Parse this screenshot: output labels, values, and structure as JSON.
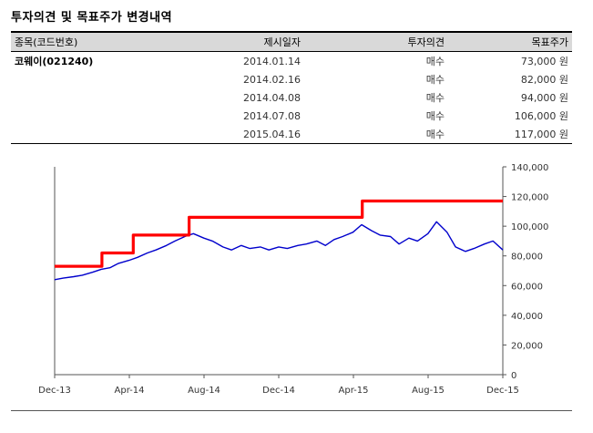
{
  "page": {
    "title": "투자의견 및 목표주가 변경내역"
  },
  "table": {
    "headers": [
      "종목(코드번호)",
      "제시일자",
      "투자의견",
      "목표주가"
    ],
    "stock": "코웨이(021240)",
    "rows": [
      {
        "date": "2014.01.14",
        "opinion": "매수",
        "target": "73,000 원"
      },
      {
        "date": "2014.02.16",
        "opinion": "매수",
        "target": "82,000 원"
      },
      {
        "date": "2014.04.08",
        "opinion": "매수",
        "target": "94,000 원"
      },
      {
        "date": "2014.07.08",
        "opinion": "매수",
        "target": "106,000 원"
      },
      {
        "date": "2015.04.16",
        "opinion": "매수",
        "target": "117,000 원"
      }
    ]
  },
  "chart_data": {
    "type": "line",
    "x_ticks": [
      "Dec-13",
      "Apr-14",
      "Aug-14",
      "Dec-14",
      "Apr-15",
      "Aug-15",
      "Dec-15"
    ],
    "y_ticks": [
      "0",
      "20,000",
      "40,000",
      "60,000",
      "80,000",
      "100,000",
      "120,000",
      "140,000"
    ],
    "ylim": [
      0,
      140000
    ],
    "xlim": [
      "2013-12-01",
      "2015-12-01"
    ],
    "colors": {
      "price": "#0000cc",
      "target": "#ff0000"
    },
    "series": [
      {
        "x": [
          "2013-12-01",
          "2013-12-15",
          "2014-01-01",
          "2014-01-15",
          "2014-02-01",
          "2014-02-15",
          "2014-03-01",
          "2014-03-15",
          "2014-04-01",
          "2014-04-15",
          "2014-05-01",
          "2014-05-15",
          "2014-06-01",
          "2014-06-15",
          "2014-07-01",
          "2014-07-15",
          "2014-08-01",
          "2014-08-15",
          "2014-09-01",
          "2014-09-15",
          "2014-10-01",
          "2014-10-15",
          "2014-11-01",
          "2014-11-15",
          "2014-12-01",
          "2014-12-15",
          "2015-01-01",
          "2015-01-15",
          "2015-02-01",
          "2015-02-15",
          "2015-03-01",
          "2015-03-15",
          "2015-04-01",
          "2015-04-15",
          "2015-05-01",
          "2015-05-15",
          "2015-06-01",
          "2015-06-15",
          "2015-07-01",
          "2015-07-15",
          "2015-08-01",
          "2015-08-15",
          "2015-09-01",
          "2015-09-15",
          "2015-10-01",
          "2015-10-15",
          "2015-11-01",
          "2015-11-15",
          "2015-12-01"
        ],
        "values": [
          64000,
          65000,
          66000,
          67000,
          69000,
          71000,
          72000,
          75000,
          77000,
          79000,
          82000,
          84000,
          87000,
          90000,
          93000,
          95000,
          92000,
          90000,
          86000,
          84000,
          87000,
          85000,
          86000,
          84000,
          86000,
          85000,
          87000,
          88000,
          90000,
          87000,
          91000,
          93000,
          96000,
          101000,
          97000,
          94000,
          93000,
          88000,
          92000,
          90000,
          95000,
          103000,
          96000,
          86000,
          83000,
          85000,
          88000,
          90000,
          84000
        ]
      },
      {
        "x": [
          "2013-12-01",
          "2014-02-16",
          "2014-02-16",
          "2014-04-08",
          "2014-04-08",
          "2014-07-08",
          "2014-07-08",
          "2015-04-16",
          "2015-04-16",
          "2015-12-01"
        ],
        "values": [
          73000,
          73000,
          82000,
          82000,
          94000,
          94000,
          106000,
          106000,
          117000,
          117000
        ]
      }
    ]
  }
}
